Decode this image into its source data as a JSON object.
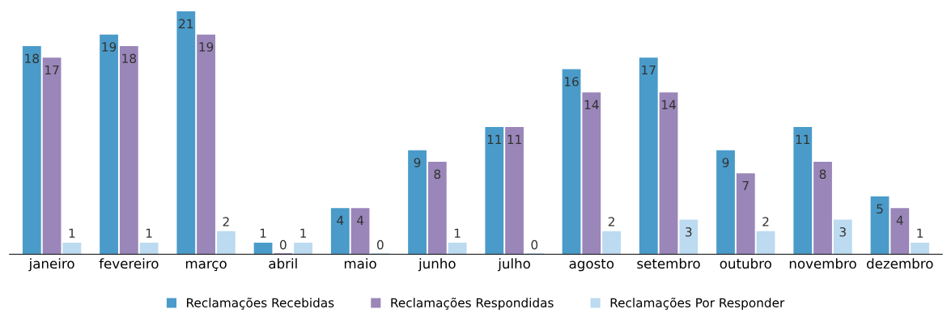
{
  "chart_data": {
    "type": "bar",
    "categories": [
      "janeiro",
      "fevereiro",
      "março",
      "abril",
      "maio",
      "junho",
      "julho",
      "agosto",
      "setembro",
      "outubro",
      "novembro",
      "dezembro"
    ],
    "series": [
      {
        "name": "Reclamações Recebidas",
        "color": "#4a9bc9",
        "values": [
          18,
          19,
          21,
          1,
          4,
          9,
          11,
          16,
          17,
          9,
          11,
          5
        ]
      },
      {
        "name": "Reclamações Respondidas",
        "color": "#9a86b9",
        "values": [
          17,
          18,
          19,
          0,
          4,
          8,
          11,
          14,
          14,
          7,
          8,
          4
        ]
      },
      {
        "name": "Reclamações Por Responder",
        "color": "#bcdaf0",
        "values": [
          1,
          1,
          2,
          1,
          0,
          1,
          0,
          2,
          3,
          2,
          3,
          1
        ]
      }
    ],
    "data_labels": true,
    "grid": false,
    "legend": "bottom"
  }
}
